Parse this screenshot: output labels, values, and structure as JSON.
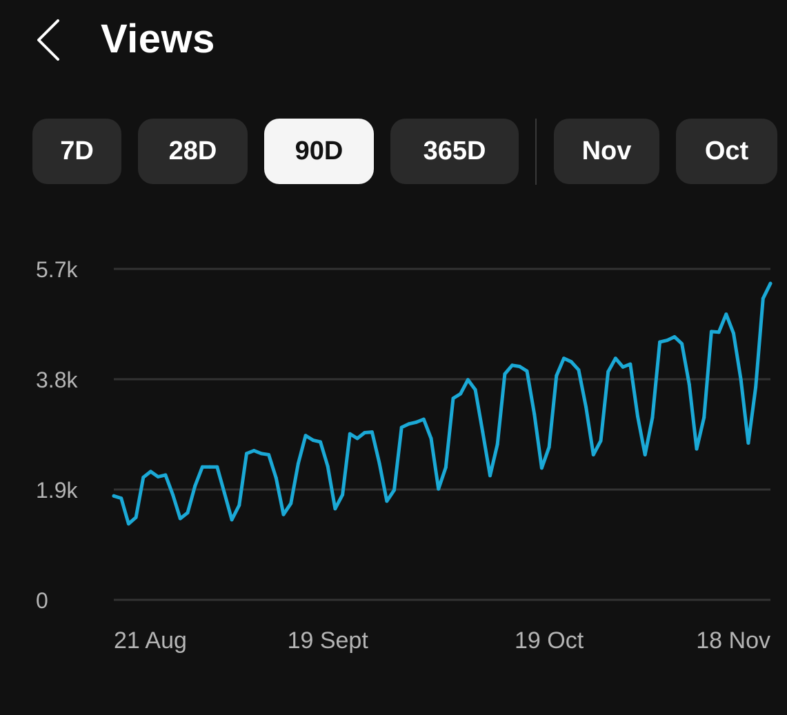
{
  "header": {
    "title": "Views"
  },
  "ranges": {
    "items": [
      {
        "label": "7D",
        "active": false
      },
      {
        "label": "28D",
        "active": false
      },
      {
        "label": "90D",
        "active": true
      },
      {
        "label": "365D",
        "active": false
      },
      {
        "label": "Nov",
        "active": false
      },
      {
        "label": "Oct",
        "active": false
      }
    ]
  },
  "colors": {
    "background": "#111111",
    "line": "#1ba9d6",
    "chip": "#2a2a2a",
    "chip_active": "#f5f5f5",
    "grid": "#333333",
    "label": "#b5b5b5"
  },
  "chart_data": {
    "type": "line",
    "title": "",
    "xlabel": "",
    "ylabel": "",
    "ylim": [
      0,
      5700
    ],
    "yticks": [
      {
        "value": 0,
        "label": "0"
      },
      {
        "value": 1900,
        "label": "1.9k"
      },
      {
        "value": 3800,
        "label": "3.8k"
      },
      {
        "value": 5700,
        "label": "5.7k"
      }
    ],
    "xticks": [
      {
        "index": 0,
        "label": "21 Aug"
      },
      {
        "index": 29,
        "label": "19 Sept"
      },
      {
        "index": 59,
        "label": "19 Oct"
      },
      {
        "index": 89,
        "label": "18 Nov"
      }
    ],
    "grid": true,
    "series": [
      {
        "values": [
          1790,
          1750,
          1310,
          1420,
          2110,
          2210,
          2120,
          2150,
          1810,
          1400,
          1500,
          1960,
          2290,
          2290,
          2290,
          1840,
          1380,
          1630,
          2520,
          2570,
          2520,
          2500,
          2100,
          1470,
          1660,
          2350,
          2830,
          2750,
          2720,
          2300,
          1570,
          1810,
          2860,
          2780,
          2880,
          2890,
          2350,
          1700,
          1890,
          2970,
          3030,
          3060,
          3110,
          2780,
          1910,
          2280,
          3470,
          3550,
          3790,
          3620,
          2890,
          2140,
          2680,
          3890,
          4040,
          4020,
          3940,
          3200,
          2270,
          2630,
          3860,
          4160,
          4100,
          3960,
          3320,
          2500,
          2740,
          3930,
          4160,
          4010,
          4060,
          3160,
          2500,
          3140,
          4440,
          4470,
          4530,
          4410,
          3710,
          2600,
          3140,
          4620,
          4610,
          4920,
          4590,
          3790,
          2700,
          3660,
          5190,
          5450
        ]
      }
    ]
  }
}
